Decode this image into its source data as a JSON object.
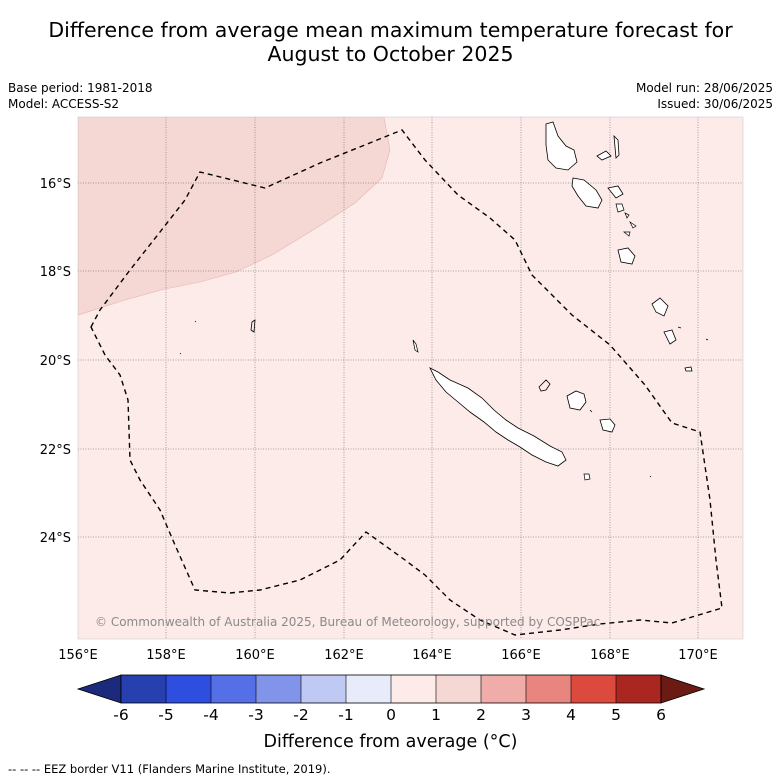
{
  "title_line1": "Difference from average mean maximum temperature forecast for",
  "title_line2": "August to October 2025",
  "meta": {
    "base_period": "Base period: 1981-2018",
    "model": "Model: ACCESS-S2",
    "model_run": "Model run: 28/06/2025",
    "issued": "Issued: 30/06/2025"
  },
  "map": {
    "lon_labels": [
      "156°E",
      "158°E",
      "160°E",
      "162°E",
      "164°E",
      "166°E",
      "168°E",
      "170°E"
    ],
    "lat_labels": [
      "16°S",
      "18°S",
      "20°S",
      "22°S",
      "24°S"
    ],
    "copyright": "© Commonwealth of Australia 2025, Bureau of Meteorology, supported by COSPPac",
    "anomaly_fill_colors": {
      "zero_to_one": "#fcebe9",
      "one_to_two": "#f5d7d4"
    }
  },
  "colorbar": {
    "ticks": [
      "-6",
      "-5",
      "-4",
      "-3",
      "-2",
      "-1",
      "0",
      "1",
      "2",
      "3",
      "4",
      "5",
      "6"
    ],
    "colors": [
      "#1b2a7a",
      "#2640b0",
      "#2e4ee0",
      "#5570e6",
      "#8294ea",
      "#c0c8f4",
      "#e8ebf9",
      "#fcebe9",
      "#f5d7d4",
      "#f0aca8",
      "#e8857e",
      "#dc4a3e",
      "#aa2620",
      "#6b1a14"
    ],
    "label": "Difference from average (°C)"
  },
  "footnote": "--  --  -- EEZ border V11 (Flanders Marine Institute, 2019)."
}
